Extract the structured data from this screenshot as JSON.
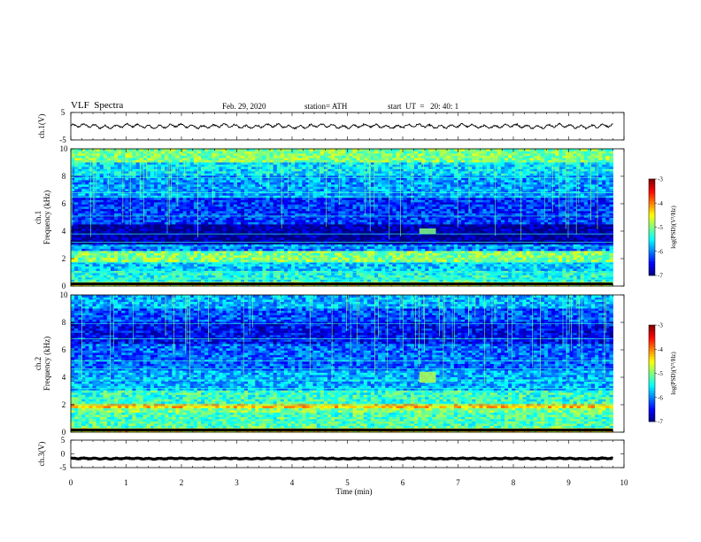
{
  "header": {
    "title": "VLF  Spectra",
    "date": "Feb. 29, 2020",
    "station": "station= ATH",
    "start": "start  UT  =   20: 40: 1"
  },
  "chart_data": [
    {
      "type": "line",
      "name": "ch1-waveform",
      "ylabel": "ch.1(V)",
      "xlim": [
        0,
        10
      ],
      "ylim": [
        -5,
        5
      ],
      "yticks": [
        "5",
        "-5"
      ],
      "data_extent_min": 9.8,
      "level_approx": 0,
      "noise_amplitude_approx": 1
    },
    {
      "type": "heatmap",
      "name": "ch1-spectrogram",
      "ylabel": "ch.1\nFrequency  (kHz)",
      "xlim": [
        0,
        10
      ],
      "ylim": [
        0,
        10
      ],
      "yticks": [
        "0",
        "2",
        "4",
        "6",
        "8",
        "10"
      ],
      "data_extent_min": 9.8,
      "colorbar": {
        "label": "log(PSD)(V²/Hz)",
        "range": [
          -7,
          -3
        ],
        "ticks": [
          "-3",
          "-4",
          "-5",
          "-6",
          "-7"
        ]
      },
      "bands": [
        {
          "f": [
            0.0,
            0.4
          ],
          "log_psd": -4.6
        },
        {
          "f": [
            0.4,
            1.2
          ],
          "log_psd": -5.4
        },
        {
          "f": [
            1.2,
            1.8
          ],
          "log_psd": -5.7
        },
        {
          "f": [
            1.8,
            2.6
          ],
          "log_psd": -5.0
        },
        {
          "f": [
            2.6,
            3.0
          ],
          "log_psd": -6.0
        },
        {
          "f": [
            3.0,
            4.5
          ],
          "log_psd": -6.9
        },
        {
          "f": [
            4.5,
            6.5
          ],
          "log_psd": -6.3
        },
        {
          "f": [
            6.5,
            8.0
          ],
          "log_psd": -5.9
        },
        {
          "f": [
            8.0,
            9.0
          ],
          "log_psd": -5.6
        },
        {
          "f": [
            9.0,
            10.0
          ],
          "log_psd": -5.0
        }
      ],
      "tone_lines_khz": [
        0.5,
        1.0,
        1.7,
        2.9,
        3.2,
        3.8,
        5.1,
        6.5,
        6.8,
        7.9
      ],
      "burst": {
        "t": [
          6.3,
          6.6
        ],
        "f": [
          3.8,
          4.2
        ],
        "log_psd": -5.0
      }
    },
    {
      "type": "heatmap",
      "name": "ch2-spectrogram",
      "ylabel": "ch.2\nFrequency  (kHz)",
      "xlim": [
        0,
        10
      ],
      "ylim": [
        0,
        10
      ],
      "yticks": [
        "0",
        "2",
        "4",
        "6",
        "8",
        "10"
      ],
      "data_extent_min": 9.8,
      "colorbar": {
        "label": "log(PSD)(V²/Hz)",
        "range": [
          -7,
          -3
        ],
        "ticks": [
          "-3",
          "-4",
          "-5",
          "-6",
          "-7"
        ]
      },
      "bands": [
        {
          "f": [
            0.0,
            0.4
          ],
          "log_psd": -4.5
        },
        {
          "f": [
            0.4,
            1.4
          ],
          "log_psd": -5.2
        },
        {
          "f": [
            1.4,
            1.8
          ],
          "log_psd": -5.0
        },
        {
          "f": [
            1.8,
            2.1
          ],
          "log_psd": -4.3
        },
        {
          "f": [
            2.1,
            3.0
          ],
          "log_psd": -5.3
        },
        {
          "f": [
            3.0,
            4.5
          ],
          "log_psd": -5.8
        },
        {
          "f": [
            4.5,
            6.5
          ],
          "log_psd": -6.1
        },
        {
          "f": [
            6.5,
            8.0
          ],
          "log_psd": -6.5
        },
        {
          "f": [
            8.0,
            9.0
          ],
          "log_psd": -6.2
        },
        {
          "f": [
            9.0,
            10.0
          ],
          "log_psd": -5.8
        }
      ],
      "tone_lines_khz": [
        0.8,
        2.0,
        3.2,
        3.8,
        4.6,
        5.2,
        6.8,
        7.9
      ],
      "burst": {
        "t": [
          6.3,
          6.6
        ],
        "f": [
          3.6,
          4.4
        ],
        "log_psd": -4.8
      }
    },
    {
      "type": "line",
      "name": "ch3-waveform",
      "ylabel": "ch.3(V)",
      "xlabel": "Time  (min)",
      "xlim": [
        0,
        10
      ],
      "ylim": [
        -5,
        5
      ],
      "yticks": [
        "5",
        "0",
        "-5"
      ],
      "xticks": [
        "0",
        "1",
        "2",
        "3",
        "4",
        "5",
        "6",
        "7",
        "8",
        "9",
        "10"
      ],
      "data_extent_min": 9.8,
      "level_approx": -1.7,
      "noise_amplitude_approx": 0.25
    }
  ]
}
